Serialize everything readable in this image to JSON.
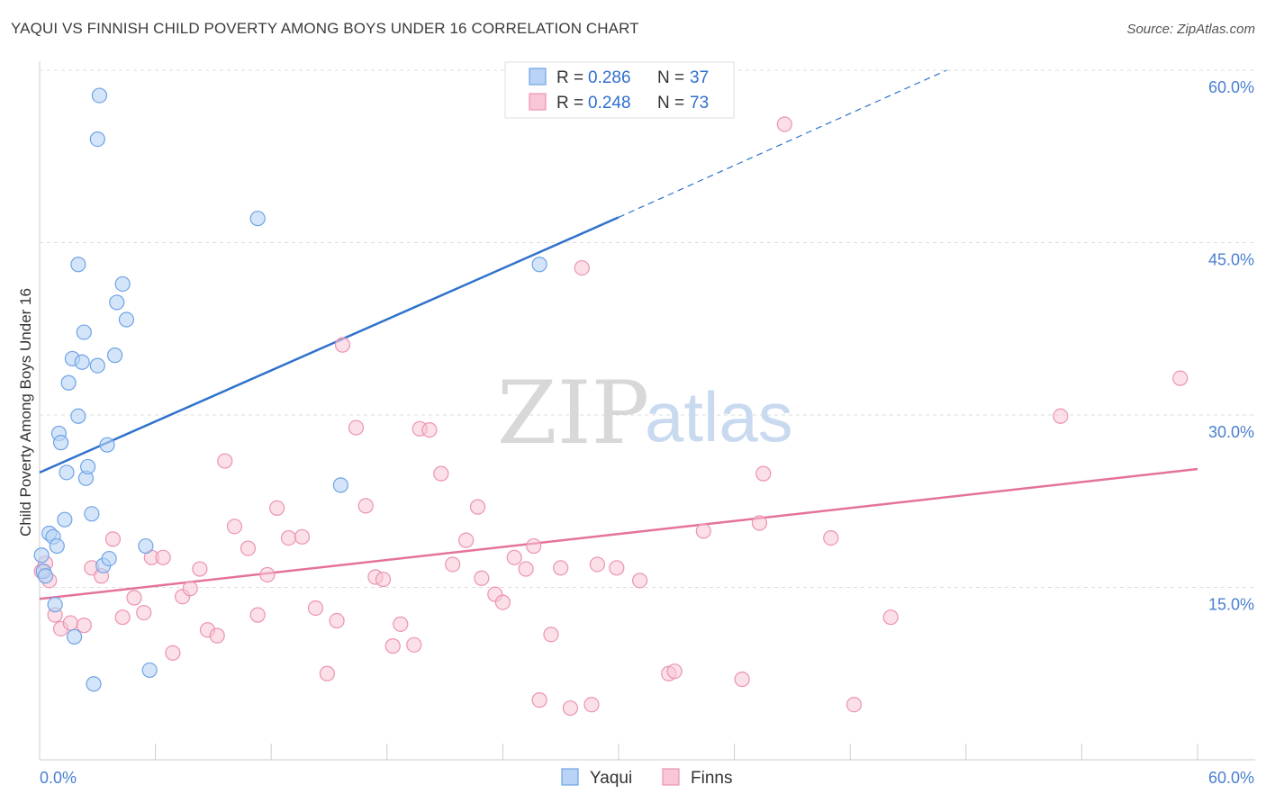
{
  "title": "YAQUI VS FINNISH CHILD POVERTY AMONG BOYS UNDER 16 CORRELATION CHART",
  "source": "Source: ZipAtlas.com",
  "watermark": {
    "part1": "ZIP",
    "part2": "atlas"
  },
  "legend": {
    "rows": [
      {
        "r_label": "R =",
        "r_value": "0.286",
        "n_label": "N =",
        "n_value": "37"
      },
      {
        "r_label": "R =",
        "r_value": "0.248",
        "n_label": "N =",
        "n_value": "73"
      }
    ]
  },
  "bottom_legend": [
    "Yaqui",
    "Finns"
  ],
  "chart_data": {
    "type": "scatter",
    "title": "YAQUI VS FINNISH CHILD POVERTY AMONG BOYS UNDER 16 CORRELATION CHART",
    "xlabel": "",
    "ylabel": "Child Poverty Among Boys Under 16",
    "xlim": [
      0,
      60
    ],
    "ylim": [
      0,
      60
    ],
    "x_tick_labels": [
      "0.0%",
      "60.0%"
    ],
    "y_ticks": [
      15,
      30,
      45,
      60
    ],
    "y_tick_labels": [
      "15.0%",
      "30.0%",
      "45.0%",
      "60.0%"
    ],
    "grid": true,
    "legend_position": "top-center",
    "colors": {
      "yaqui_fill": "#b8d3f5",
      "yaqui_stroke": "#6fa3e6",
      "yaqui_line": "#2f72cc",
      "finns_fill": "#f8c6d6",
      "finns_stroke": "#ec93b1",
      "finns_line": "#e5729a",
      "grid": "#dddddd",
      "axis": "#cccccc"
    },
    "series": [
      {
        "name": "Yaqui",
        "trend": {
          "x": [
            0,
            30
          ],
          "y": [
            25.0,
            47.2
          ],
          "dashed_to": [
            47,
            60.0
          ]
        },
        "points": [
          [
            0.1,
            17.8
          ],
          [
            0.2,
            16.4
          ],
          [
            0.3,
            16.0
          ],
          [
            0.5,
            19.7
          ],
          [
            0.7,
            19.4
          ],
          [
            0.8,
            13.5
          ],
          [
            0.9,
            18.6
          ],
          [
            1.0,
            28.4
          ],
          [
            1.1,
            27.6
          ],
          [
            1.3,
            20.9
          ],
          [
            1.4,
            25.0
          ],
          [
            1.5,
            32.8
          ],
          [
            1.7,
            34.9
          ],
          [
            1.8,
            10.7
          ],
          [
            2.0,
            29.9
          ],
          [
            2.2,
            34.6
          ],
          [
            2.3,
            37.2
          ],
          [
            2.4,
            24.5
          ],
          [
            2.5,
            25.5
          ],
          [
            2.7,
            21.4
          ],
          [
            2.8,
            6.6
          ],
          [
            3.0,
            54.0
          ],
          [
            3.0,
            34.3
          ],
          [
            3.1,
            57.8
          ],
          [
            3.3,
            16.9
          ],
          [
            3.5,
            27.4
          ],
          [
            3.6,
            17.5
          ],
          [
            3.9,
            35.2
          ],
          [
            4.0,
            39.8
          ],
          [
            4.3,
            41.4
          ],
          [
            4.5,
            38.3
          ],
          [
            5.5,
            18.6
          ],
          [
            5.7,
            7.8
          ],
          [
            2.0,
            43.1
          ],
          [
            11.3,
            47.1
          ],
          [
            15.6,
            23.9
          ],
          [
            25.9,
            43.1
          ]
        ]
      },
      {
        "name": "Finns",
        "trend": {
          "x": [
            0,
            60
          ],
          "y": [
            14.0,
            25.3
          ]
        },
        "points": [
          [
            0.1,
            16.4
          ],
          [
            0.3,
            17.1
          ],
          [
            0.8,
            12.6
          ],
          [
            1.1,
            11.4
          ],
          [
            1.6,
            11.9
          ],
          [
            2.3,
            11.7
          ],
          [
            2.7,
            16.7
          ],
          [
            3.2,
            16.0
          ],
          [
            3.8,
            19.2
          ],
          [
            4.3,
            12.4
          ],
          [
            4.9,
            14.1
          ],
          [
            5.4,
            12.8
          ],
          [
            5.8,
            17.6
          ],
          [
            6.4,
            17.6
          ],
          [
            6.9,
            9.3
          ],
          [
            7.4,
            14.2
          ],
          [
            7.8,
            14.9
          ],
          [
            8.3,
            16.6
          ],
          [
            8.7,
            11.3
          ],
          [
            9.2,
            10.8
          ],
          [
            9.6,
            26.0
          ],
          [
            10.1,
            20.3
          ],
          [
            10.8,
            18.4
          ],
          [
            11.3,
            12.6
          ],
          [
            11.8,
            16.1
          ],
          [
            12.3,
            21.9
          ],
          [
            12.9,
            19.3
          ],
          [
            13.6,
            19.4
          ],
          [
            14.3,
            13.2
          ],
          [
            14.9,
            7.5
          ],
          [
            15.4,
            12.1
          ],
          [
            15.7,
            36.1
          ],
          [
            16.4,
            28.9
          ],
          [
            16.9,
            22.1
          ],
          [
            17.4,
            15.9
          ],
          [
            17.8,
            15.7
          ],
          [
            18.3,
            9.9
          ],
          [
            18.7,
            11.8
          ],
          [
            19.4,
            10.0
          ],
          [
            19.7,
            28.8
          ],
          [
            20.2,
            28.7
          ],
          [
            20.8,
            24.9
          ],
          [
            21.4,
            17.0
          ],
          [
            22.1,
            19.1
          ],
          [
            22.7,
            22.0
          ],
          [
            22.9,
            15.8
          ],
          [
            23.6,
            14.4
          ],
          [
            24.0,
            13.7
          ],
          [
            24.6,
            17.6
          ],
          [
            25.2,
            16.6
          ],
          [
            25.6,
            18.6
          ],
          [
            25.9,
            5.2
          ],
          [
            26.5,
            10.9
          ],
          [
            27.0,
            16.7
          ],
          [
            27.5,
            4.5
          ],
          [
            28.1,
            42.8
          ],
          [
            28.6,
            4.8
          ],
          [
            28.9,
            17.0
          ],
          [
            29.9,
            16.7
          ],
          [
            31.1,
            15.6
          ],
          [
            32.6,
            7.5
          ],
          [
            32.9,
            7.7
          ],
          [
            34.4,
            19.9
          ],
          [
            36.4,
            7.0
          ],
          [
            37.3,
            20.6
          ],
          [
            37.5,
            24.9
          ],
          [
            38.6,
            55.3
          ],
          [
            41.0,
            19.3
          ],
          [
            42.2,
            4.8
          ],
          [
            44.1,
            12.4
          ],
          [
            52.9,
            29.9
          ],
          [
            59.1,
            33.2
          ],
          [
            0.5,
            15.6
          ]
        ]
      }
    ]
  }
}
